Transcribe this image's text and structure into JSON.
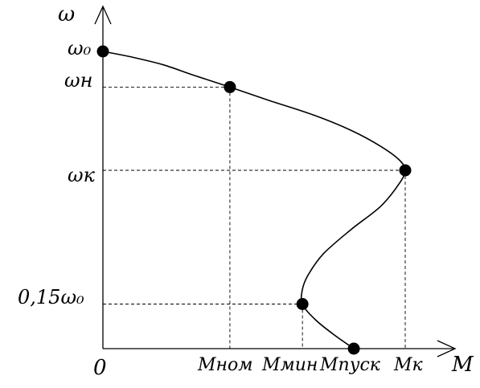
{
  "chart_data": {
    "type": "line",
    "title": "",
    "xlabel": "M",
    "ylabel": "ω",
    "origin_label": "0",
    "x_ticks": [
      "Мном",
      "Ммин",
      "Мпуск",
      "Мк"
    ],
    "y_ticks": [
      "ω₀",
      "ωн",
      "ωк",
      "0,15ω₀"
    ],
    "key_points": [
      {
        "name": "ω₀ at M=0",
        "x": 0,
        "y": 1.0
      },
      {
        "name": "nominal",
        "x": 0.42,
        "y": 0.88
      },
      {
        "name": "critical",
        "x": 1.0,
        "y": 0.6
      },
      {
        "name": "minimum",
        "x": 0.66,
        "y": 0.15
      },
      {
        "name": "starting",
        "x": 0.83,
        "y": 0.0
      }
    ],
    "curve": [
      [
        0,
        1.0
      ],
      [
        0.1,
        0.98
      ],
      [
        0.2,
        0.955
      ],
      [
        0.3,
        0.92
      ],
      [
        0.42,
        0.88
      ],
      [
        0.55,
        0.835
      ],
      [
        0.7,
        0.785
      ],
      [
        0.82,
        0.735
      ],
      [
        0.92,
        0.68
      ],
      [
        0.98,
        0.635
      ],
      [
        1.0,
        0.6
      ],
      [
        0.98,
        0.555
      ],
      [
        0.92,
        0.48
      ],
      [
        0.82,
        0.4
      ],
      [
        0.73,
        0.32
      ],
      [
        0.68,
        0.25
      ],
      [
        0.66,
        0.2
      ],
      [
        0.66,
        0.15
      ],
      [
        0.7,
        0.1
      ],
      [
        0.76,
        0.05
      ],
      [
        0.83,
        0.0
      ]
    ],
    "xlim": [
      0,
      1.16
    ],
    "ylim": [
      0,
      1.18
    ],
    "grid": false,
    "guide_lines": true
  }
}
